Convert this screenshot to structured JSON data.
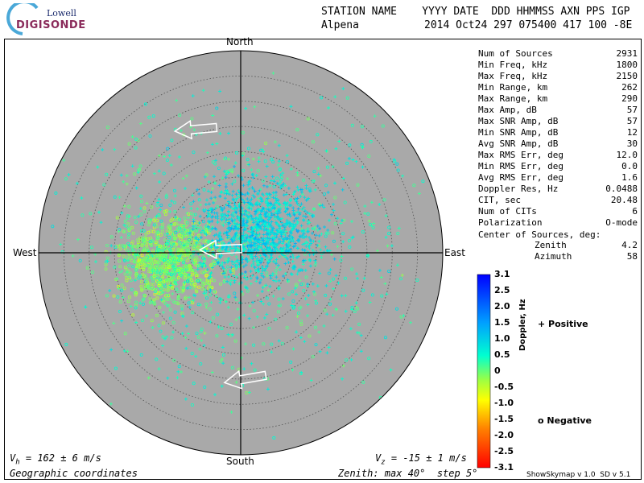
{
  "logo": {
    "line1": "Lowell",
    "line2": "DIGISONDE"
  },
  "header": {
    "line1": "STATION NAME    YYYY DATE  DDD HHMMSS AXN PPS IGP",
    "station": "Alpena",
    "values": "2014 Oct24 297 075400 417 100 -8E"
  },
  "stats": [
    {
      "label": "Num of Sources",
      "value": "2931"
    },
    {
      "label": "Min Freq, kHz",
      "value": "1800"
    },
    {
      "label": "Max Freq, kHz",
      "value": "2150"
    },
    {
      "label": "Min Range, km",
      "value": "262"
    },
    {
      "label": "Max Range, km",
      "value": "290"
    },
    {
      "label": "Max Amp, dB",
      "value": "57"
    },
    {
      "label": "Max SNR Amp, dB",
      "value": "57"
    },
    {
      "label": "Min SNR Amp, dB",
      "value": "12"
    },
    {
      "label": "Avg SNR Amp, dB",
      "value": "30"
    },
    {
      "label": "Max RMS Err, deg",
      "value": "12.0"
    },
    {
      "label": "Min RMS Err, deg",
      "value": "0.0"
    },
    {
      "label": "Avg RMS Err, deg",
      "value": "1.6"
    },
    {
      "label": "Doppler Res, Hz",
      "value": "0.0488"
    },
    {
      "label": "CIT, sec",
      "value": "20.48"
    },
    {
      "label": "Num of CITs",
      "value": "6"
    },
    {
      "label": "Polarization",
      "value": "O-mode"
    }
  ],
  "center": {
    "label": "Center of Sources, deg:",
    "zenith_label": "Zenith",
    "zenith": "4.2",
    "azimuth_label": "Azimuth",
    "azimuth": "58"
  },
  "directions": {
    "north": "North",
    "south": "South",
    "west": "West",
    "east": "East"
  },
  "footer": {
    "vh": "V",
    "vh_sub": "h",
    "vh_value": " = 162 ± 6 m/s",
    "vz": "V",
    "vz_sub": "z",
    "vz_value": " = -15 ± 1 m/s",
    "coords": "Geographic coordinates",
    "zenith_info": "Zenith: max 40°  step 5°",
    "version": "ShowSkymap v 1.0  SD v 5.1"
  },
  "colorbar": {
    "title": "Doppler, Hz",
    "ticks": [
      "3.1",
      "2.5",
      "2.0",
      "1.5",
      "1.0",
      "0.5",
      "0",
      "-0.5",
      "-1.0",
      "-1.5",
      "-2.0",
      "-2.5",
      "-3.1"
    ],
    "min": -3.1,
    "max": 3.1
  },
  "legend": {
    "positive": "+ Positive",
    "negative": "o Negative",
    "positive_color": "#0000c0",
    "negative_color": "#c00000"
  },
  "skymap": {
    "max_zenith_deg": 40,
    "step_deg": 5,
    "clusters": [
      {
        "name": "west-negative",
        "count": 900,
        "zenith_mean": 14,
        "azimuth_mean": 265,
        "spread_deg": 7,
        "doppler_mean": -0.1,
        "marker": "o"
      },
      {
        "name": "east-positive",
        "count": 1100,
        "zenith_mean": 6,
        "azimuth_mean": 45,
        "spread_deg": 8,
        "doppler_mean": 0.9,
        "marker": "+"
      },
      {
        "name": "scattered",
        "count": 900,
        "zenith_mean": 0,
        "azimuth_mean": 0,
        "spread_deg": 22,
        "doppler_mean": 0.4,
        "marker": "mixed"
      }
    ],
    "arrows": [
      {
        "name": "north-arrow",
        "zenith": 26,
        "azimuth": 340,
        "heading_deg": 265
      },
      {
        "name": "center-arrow",
        "zenith": 4,
        "azimuth": 280,
        "heading_deg": 268
      },
      {
        "name": "south-arrow",
        "zenith": 25,
        "azimuth": 178,
        "heading_deg": 260
      }
    ]
  }
}
